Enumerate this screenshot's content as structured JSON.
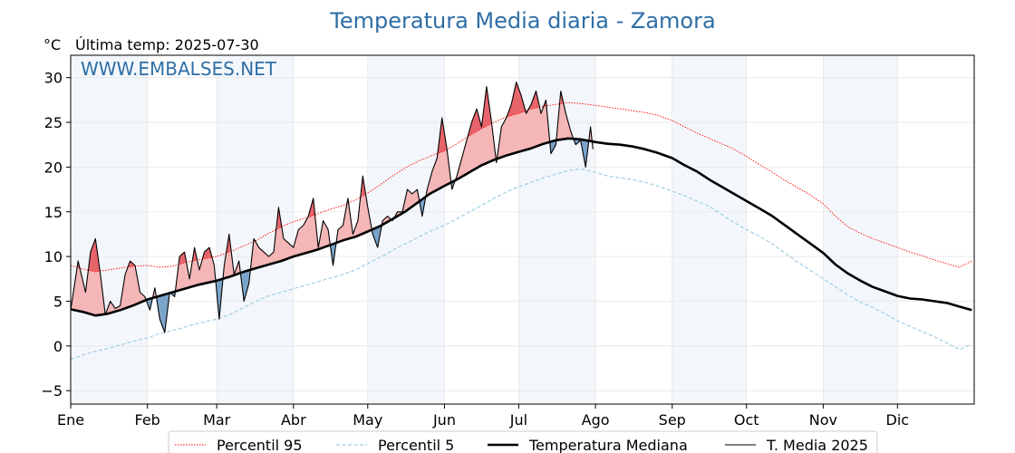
{
  "chart_data": {
    "type": "line",
    "title": "Temperatura Media diaria - Zamora",
    "unit_label": "°C",
    "last_temp_label": "Última temp: 2025-07-30",
    "watermark": "WWW.EMBALSES.NET",
    "ylim": [
      -6.5,
      32.5
    ],
    "yticks": [
      -5,
      0,
      5,
      10,
      15,
      20,
      25,
      30
    ],
    "xlim": [
      0,
      365
    ],
    "month_labels": [
      "Ene",
      "Feb",
      "Mar",
      "Abr",
      "May",
      "Jun",
      "Jul",
      "Ago",
      "Sep",
      "Oct",
      "Nov",
      "Dic"
    ],
    "month_starts": [
      0,
      31,
      59,
      90,
      120,
      151,
      181,
      212,
      243,
      273,
      304,
      334
    ],
    "grid": true,
    "legend_position": "bottom",
    "colors": {
      "title": "#2e6ea6",
      "p95": "#ff0000",
      "p5": "#9fcde3",
      "median": "#000000",
      "t2025": "#000000",
      "above_fill": "#f4b6b7",
      "above_p95_fill": "#e8646b",
      "below_fill": "#7ba4c9",
      "band": "#f3f7fc"
    },
    "series": [
      {
        "name": "Percentil 95",
        "style": "dotted",
        "x": [
          0,
          5,
          10,
          15,
          20,
          25,
          31,
          36,
          41,
          46,
          51,
          59,
          65,
          70,
          75,
          80,
          85,
          90,
          95,
          100,
          105,
          110,
          115,
          120,
          125,
          130,
          135,
          140,
          145,
          151,
          156,
          161,
          166,
          171,
          176,
          181,
          186,
          191,
          196,
          201,
          206,
          212,
          217,
          222,
          227,
          232,
          237,
          243,
          248,
          253,
          258,
          263,
          268,
          273,
          278,
          283,
          288,
          293,
          298,
          304,
          309,
          314,
          319,
          324,
          329,
          334,
          339,
          344,
          349,
          354,
          359,
          364
        ],
        "values": [
          9.0,
          8.6,
          8.3,
          8.5,
          8.7,
          8.9,
          9.0,
          8.8,
          8.9,
          9.3,
          9.6,
          10.0,
          10.6,
          11.2,
          11.8,
          12.6,
          13.3,
          13.9,
          14.3,
          14.8,
          15.3,
          15.7,
          16.3,
          17.1,
          18.0,
          19.0,
          19.9,
          20.6,
          21.2,
          21.8,
          22.6,
          23.5,
          24.3,
          25.0,
          25.6,
          26.0,
          26.5,
          26.8,
          27.0,
          27.2,
          27.1,
          26.9,
          26.7,
          26.5,
          26.3,
          26.1,
          25.8,
          25.2,
          24.5,
          23.8,
          23.2,
          22.6,
          22.0,
          21.2,
          20.3,
          19.5,
          18.6,
          17.8,
          17.0,
          15.9,
          14.5,
          13.3,
          12.6,
          12.0,
          11.5,
          11.0,
          10.5,
          10.1,
          9.6,
          9.2,
          8.8,
          9.5
        ]
      },
      {
        "name": "Percentil 5",
        "style": "dashed",
        "x": [
          0,
          5,
          10,
          15,
          20,
          25,
          31,
          36,
          41,
          46,
          51,
          59,
          65,
          70,
          75,
          80,
          85,
          90,
          95,
          100,
          105,
          110,
          115,
          120,
          125,
          130,
          135,
          140,
          145,
          151,
          156,
          161,
          166,
          171,
          176,
          181,
          186,
          191,
          196,
          201,
          206,
          212,
          217,
          222,
          227,
          232,
          237,
          243,
          248,
          253,
          258,
          263,
          268,
          273,
          278,
          283,
          288,
          293,
          298,
          304,
          309,
          314,
          319,
          324,
          329,
          334,
          339,
          344,
          349,
          354,
          359,
          364
        ],
        "values": [
          -1.5,
          -1.0,
          -0.6,
          -0.3,
          0.1,
          0.5,
          0.9,
          1.4,
          1.7,
          2.1,
          2.5,
          3.0,
          3.6,
          4.3,
          5.0,
          5.6,
          6.0,
          6.4,
          6.8,
          7.2,
          7.6,
          8.0,
          8.5,
          9.2,
          9.9,
          10.7,
          11.4,
          12.1,
          12.8,
          13.5,
          14.2,
          15.0,
          15.7,
          16.5,
          17.2,
          17.8,
          18.3,
          18.8,
          19.2,
          19.6,
          19.8,
          19.4,
          19.0,
          18.8,
          18.6,
          18.3,
          17.9,
          17.3,
          16.8,
          16.2,
          15.6,
          14.7,
          13.8,
          13.0,
          12.3,
          11.5,
          10.5,
          9.5,
          8.6,
          7.5,
          6.6,
          5.7,
          4.9,
          4.3,
          3.6,
          2.8,
          2.2,
          1.6,
          1.0,
          0.3,
          -0.4,
          0.2
        ]
      },
      {
        "name": "Temperatura Mediana",
        "style": "bold",
        "x": [
          0,
          5,
          10,
          15,
          20,
          25,
          31,
          36,
          41,
          46,
          51,
          59,
          65,
          70,
          75,
          80,
          85,
          90,
          95,
          100,
          105,
          110,
          115,
          120,
          125,
          130,
          135,
          140,
          145,
          151,
          156,
          161,
          166,
          171,
          176,
          181,
          186,
          191,
          196,
          201,
          206,
          212,
          217,
          222,
          227,
          232,
          237,
          243,
          248,
          253,
          258,
          263,
          268,
          273,
          278,
          283,
          288,
          293,
          298,
          304,
          309,
          314,
          319,
          324,
          329,
          334,
          339,
          344,
          349,
          354,
          359,
          364
        ],
        "values": [
          4.1,
          3.8,
          3.4,
          3.6,
          4.0,
          4.5,
          5.2,
          5.6,
          6.0,
          6.4,
          6.8,
          7.3,
          7.8,
          8.3,
          8.7,
          9.1,
          9.5,
          10.0,
          10.4,
          10.8,
          11.3,
          11.8,
          12.2,
          12.8,
          13.4,
          14.2,
          15.0,
          16.0,
          17.0,
          17.9,
          18.6,
          19.4,
          20.2,
          20.8,
          21.3,
          21.7,
          22.1,
          22.6,
          23.0,
          23.2,
          23.1,
          22.8,
          22.6,
          22.5,
          22.3,
          22.0,
          21.6,
          21.0,
          20.2,
          19.5,
          18.6,
          17.8,
          17.0,
          16.2,
          15.4,
          14.6,
          13.6,
          12.6,
          11.6,
          10.4,
          9.1,
          8.1,
          7.3,
          6.6,
          6.1,
          5.6,
          5.3,
          5.2,
          5.0,
          4.8,
          4.4,
          4.0
        ]
      },
      {
        "name": "T. Media 2025",
        "style": "thin",
        "x": [
          0,
          3,
          6,
          8,
          10,
          12,
          14,
          16,
          18,
          20,
          22,
          24,
          26,
          28,
          30,
          32,
          34,
          36,
          38,
          40,
          42,
          44,
          46,
          48,
          50,
          52,
          54,
          56,
          58,
          60,
          62,
          64,
          66,
          68,
          70,
          72,
          74,
          76,
          78,
          80,
          82,
          84,
          86,
          88,
          90,
          92,
          94,
          96,
          98,
          100,
          102,
          104,
          106,
          108,
          110,
          112,
          114,
          116,
          118,
          120,
          122,
          124,
          126,
          128,
          130,
          132,
          134,
          136,
          138,
          140,
          142,
          144,
          146,
          148,
          150,
          152,
          154,
          156,
          158,
          160,
          162,
          164,
          166,
          168,
          170,
          172,
          174,
          176,
          178,
          180,
          182,
          184,
          186,
          188,
          190,
          192,
          194,
          196,
          198,
          200,
          202,
          204,
          206,
          208,
          210,
          211
        ],
        "values": [
          4.0,
          9.5,
          6.0,
          10.5,
          12.0,
          8.0,
          3.5,
          5.0,
          4.2,
          4.5,
          8.0,
          9.5,
          9.0,
          6.0,
          5.5,
          4.0,
          6.5,
          3.0,
          1.5,
          6.0,
          5.5,
          10.0,
          10.5,
          7.5,
          11.0,
          8.5,
          10.5,
          11.0,
          9.0,
          3.0,
          9.0,
          12.5,
          8.0,
          9.5,
          5.0,
          7.0,
          12.0,
          11.0,
          10.5,
          10.0,
          10.5,
          15.5,
          12.0,
          11.5,
          11.0,
          13.0,
          13.5,
          14.5,
          16.5,
          11.0,
          14.0,
          13.0,
          9.0,
          13.0,
          13.5,
          16.5,
          12.5,
          14.0,
          19.0,
          15.5,
          12.5,
          11.0,
          14.0,
          14.5,
          14.0,
          15.0,
          15.0,
          17.5,
          17.0,
          17.5,
          14.5,
          17.5,
          19.5,
          21.0,
          25.5,
          22.0,
          17.5,
          19.0,
          21.0,
          23.0,
          25.0,
          26.5,
          24.5,
          29.0,
          25.0,
          20.5,
          24.5,
          25.5,
          27.0,
          29.5,
          28.0,
          26.0,
          27.0,
          28.5,
          26.0,
          27.5,
          21.5,
          22.5,
          28.5,
          26.0,
          24.0,
          22.5,
          23.0,
          20.0,
          24.5,
          22.0
        ]
      }
    ]
  }
}
